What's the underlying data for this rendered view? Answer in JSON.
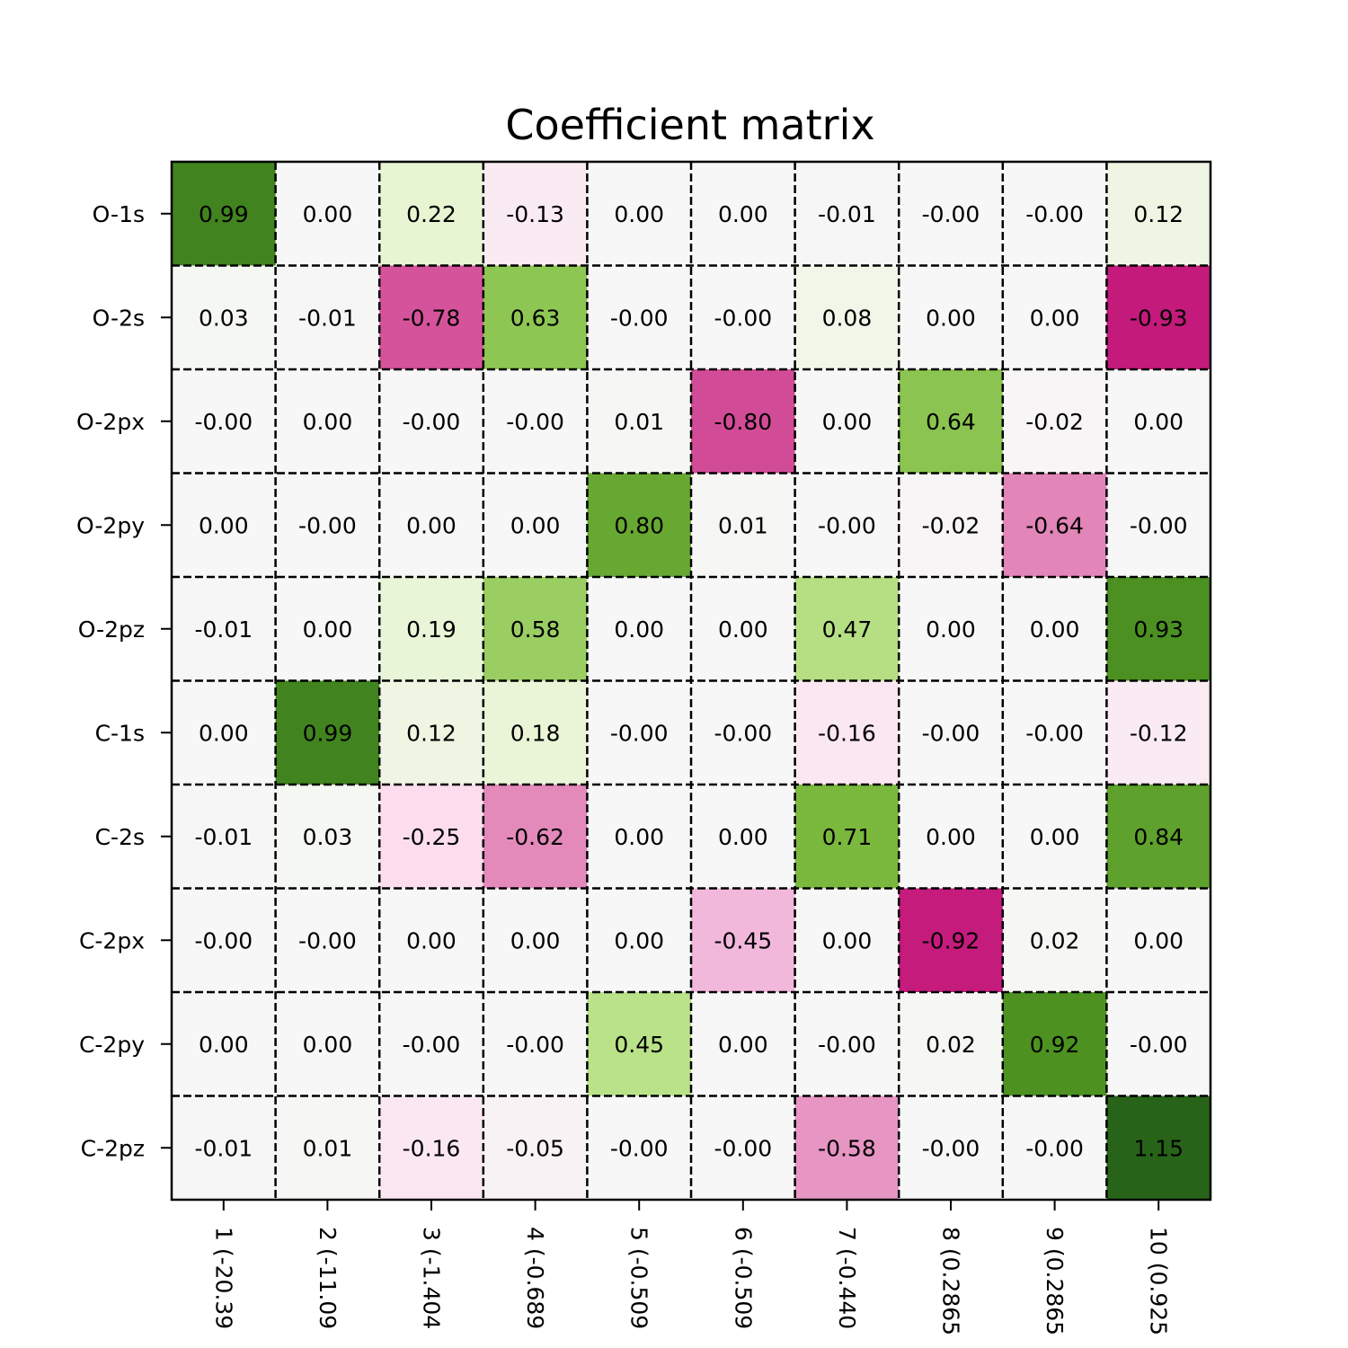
{
  "chart_data": {
    "type": "heatmap",
    "title": "Coefficient matrix",
    "xlabel": "",
    "ylabel": "",
    "colormap": "PiYG",
    "color_range": [
      -1.15,
      1.15
    ],
    "grid": true,
    "grid_style": "dashed",
    "x_tick_labels": [
      "1 (-20.39",
      "2 (-11.09",
      "3 (-1.404",
      "4 (-0.689",
      "5 (-0.509",
      "6 (-0.509",
      "7 (-0.440",
      "8 (0.2865",
      "9 (0.2865",
      "10 (0.925"
    ],
    "y_tick_labels": [
      "O-1s",
      "O-2s",
      "O-2px",
      "O-2py",
      "O-2pz",
      "C-1s",
      "C-2s",
      "C-2px",
      "C-2py",
      "C-2pz"
    ],
    "values": [
      [
        0.99,
        0.0,
        0.22,
        -0.13,
        0.0,
        0.0,
        -0.01,
        -0.0,
        -0.0,
        0.12
      ],
      [
        0.03,
        -0.01,
        -0.78,
        0.63,
        -0.0,
        -0.0,
        0.08,
        0.0,
        0.0,
        -0.93
      ],
      [
        -0.0,
        0.0,
        -0.0,
        -0.0,
        0.01,
        -0.8,
        0.0,
        0.64,
        -0.02,
        0.0
      ],
      [
        0.0,
        -0.0,
        0.0,
        0.0,
        0.8,
        0.01,
        -0.0,
        -0.02,
        -0.64,
        -0.0
      ],
      [
        -0.01,
        0.0,
        0.19,
        0.58,
        0.0,
        0.0,
        0.47,
        0.0,
        0.0,
        0.93
      ],
      [
        0.0,
        0.99,
        0.12,
        0.18,
        -0.0,
        -0.0,
        -0.16,
        -0.0,
        -0.0,
        -0.12
      ],
      [
        -0.01,
        0.03,
        -0.25,
        -0.62,
        0.0,
        0.0,
        0.71,
        0.0,
        0.0,
        0.84
      ],
      [
        -0.0,
        -0.0,
        0.0,
        0.0,
        0.0,
        -0.45,
        0.0,
        -0.92,
        0.02,
        0.0
      ],
      [
        0.0,
        0.0,
        -0.0,
        -0.0,
        0.45,
        0.0,
        -0.0,
        0.02,
        0.92,
        -0.0
      ],
      [
        -0.01,
        0.01,
        -0.16,
        -0.05,
        -0.0,
        -0.0,
        -0.58,
        -0.0,
        -0.0,
        1.15
      ]
    ],
    "cell_labels": [
      [
        "0.99",
        "0.00",
        "0.22",
        "-0.13",
        "0.00",
        "0.00",
        "-0.01",
        "-0.00",
        "-0.00",
        "0.12"
      ],
      [
        "0.03",
        "-0.01",
        "-0.78",
        "0.63",
        "-0.00",
        "-0.00",
        "0.08",
        "0.00",
        "0.00",
        "-0.93"
      ],
      [
        "-0.00",
        "0.00",
        "-0.00",
        "-0.00",
        "0.01",
        "-0.80",
        "0.00",
        "0.64",
        "-0.02",
        "0.00"
      ],
      [
        "0.00",
        "-0.00",
        "0.00",
        "0.00",
        "0.80",
        "0.01",
        "-0.00",
        "-0.02",
        "-0.64",
        "-0.00"
      ],
      [
        "-0.01",
        "0.00",
        "0.19",
        "0.58",
        "0.00",
        "0.00",
        "0.47",
        "0.00",
        "0.00",
        "0.93"
      ],
      [
        "0.00",
        "0.99",
        "0.12",
        "0.18",
        "-0.00",
        "-0.00",
        "-0.16",
        "-0.00",
        "-0.00",
        "-0.12"
      ],
      [
        "-0.01",
        "0.03",
        "-0.25",
        "-0.62",
        "0.00",
        "0.00",
        "0.71",
        "0.00",
        "0.00",
        "0.84"
      ],
      [
        "-0.00",
        "-0.00",
        "0.00",
        "0.00",
        "0.00",
        "-0.45",
        "0.00",
        "-0.92",
        "0.02",
        "0.00"
      ],
      [
        "0.00",
        "0.00",
        "-0.00",
        "-0.00",
        "0.45",
        "0.00",
        "-0.00",
        "0.02",
        "0.92",
        "-0.00"
      ],
      [
        "-0.01",
        "0.01",
        "-0.16",
        "-0.05",
        "-0.00",
        "-0.00",
        "-0.58",
        "-0.00",
        "-0.00",
        "1.15"
      ]
    ]
  }
}
